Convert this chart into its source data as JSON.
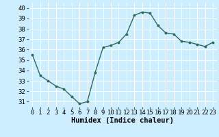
{
  "x": [
    0,
    1,
    2,
    3,
    4,
    5,
    6,
    7,
    8,
    9,
    10,
    11,
    12,
    13,
    14,
    15,
    16,
    17,
    18,
    19,
    20,
    21,
    22,
    23
  ],
  "y": [
    35.5,
    33.5,
    33.0,
    32.5,
    32.2,
    31.5,
    30.8,
    31.0,
    33.8,
    36.2,
    36.4,
    36.7,
    37.5,
    39.3,
    39.6,
    39.5,
    38.3,
    37.6,
    37.5,
    36.8,
    36.7,
    36.5,
    36.3,
    36.7
  ],
  "xlabel": "Humidex (Indice chaleur)",
  "xlim": [
    -0.5,
    23.5
  ],
  "ylim": [
    30.5,
    40.5
  ],
  "yticks": [
    31,
    32,
    33,
    34,
    35,
    36,
    37,
    38,
    39,
    40
  ],
  "xticks": [
    0,
    1,
    2,
    3,
    4,
    5,
    6,
    7,
    8,
    9,
    10,
    11,
    12,
    13,
    14,
    15,
    16,
    17,
    18,
    19,
    20,
    21,
    22,
    23
  ],
  "xtick_labels": [
    "0",
    "1",
    "2",
    "3",
    "4",
    "5",
    "6",
    "7",
    "8",
    "9",
    "10",
    "11",
    "12",
    "13",
    "14",
    "15",
    "16",
    "17",
    "18",
    "19",
    "20",
    "21",
    "22",
    "23"
  ],
  "line_color": "#2e6b5e",
  "marker": "o",
  "marker_size": 1.8,
  "bg_color": "#cceeff",
  "grid_color": "#ffffff",
  "line_width": 1.0,
  "xlabel_fontsize": 7.5,
  "tick_fontsize": 6.5
}
